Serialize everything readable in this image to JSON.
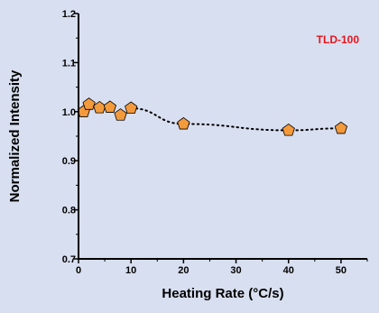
{
  "chart_data": {
    "type": "scatter",
    "title": "",
    "xlabel": "Heating Rate (°C/s)",
    "ylabel": "Normalized Intensity",
    "xlim": [
      0,
      55
    ],
    "ylim": [
      0.7,
      1.2
    ],
    "xticks": [
      0,
      10,
      20,
      30,
      40,
      50
    ],
    "yticks": [
      0.7,
      0.8,
      0.9,
      1.0,
      1.1,
      1.2
    ],
    "ytick_labels": [
      "0.7",
      "0.8",
      "0.9",
      "1.0",
      "1.1",
      "1.2"
    ],
    "grid": false,
    "annotation": {
      "text": "TLD-100",
      "color": "#e8141c"
    },
    "marker": {
      "shape": "pentagon",
      "fill": "#f39a3c",
      "stroke": "#000000"
    },
    "trend_line": {
      "style": "dotted",
      "color": "#000000",
      "x": [
        10,
        20,
        40,
        50
      ],
      "y": [
        1.007,
        0.975,
        0.962,
        0.966
      ]
    },
    "series": [
      {
        "x": [
          1,
          2,
          4,
          6,
          8,
          10,
          20,
          40,
          50
        ],
        "y": [
          1.0,
          1.015,
          1.008,
          1.009,
          0.993,
          1.007,
          0.975,
          0.962,
          0.966
        ]
      }
    ]
  }
}
